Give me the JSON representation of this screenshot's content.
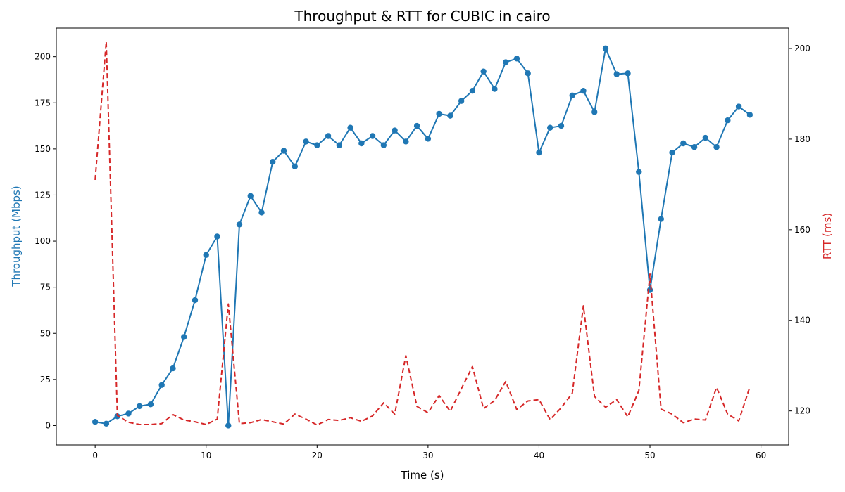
{
  "chart_data": {
    "type": "line",
    "title": "Throughput & RTT for CUBIC in cairo",
    "xlabel": "Time (s)",
    "ylabel_left": "Throughput (Mbps)",
    "ylabel_right": "RTT (ms)",
    "xlim": [
      -3.5,
      62.5
    ],
    "ylim_left": [
      -10.5,
      215.5
    ],
    "ylim_right": [
      112.5,
      204.5
    ],
    "x_ticks": [
      0,
      10,
      20,
      30,
      40,
      50,
      60
    ],
    "y_ticks_left": [
      0,
      25,
      50,
      75,
      100,
      125,
      150,
      175,
      200
    ],
    "y_ticks_right": [
      120,
      140,
      160,
      180,
      200
    ],
    "grid": false,
    "colors": {
      "throughput": "#1f77b4",
      "rtt": "#d62728"
    },
    "x": [
      0,
      1,
      2,
      3,
      4,
      5,
      6,
      7,
      8,
      9,
      10,
      11,
      12,
      13,
      14,
      15,
      16,
      17,
      18,
      19,
      20,
      21,
      22,
      23,
      24,
      25,
      26,
      27,
      28,
      29,
      30,
      31,
      32,
      33,
      34,
      35,
      36,
      37,
      38,
      39,
      40,
      41,
      42,
      43,
      44,
      45,
      46,
      47,
      48,
      49,
      50,
      51,
      52,
      53,
      54,
      55,
      56,
      57,
      58,
      59
    ],
    "series": [
      {
        "key": "throughput",
        "axis": "left",
        "style": "solid-marker",
        "values": [
          2,
          1,
          5,
          6.5,
          10.5,
          11.5,
          22,
          31,
          48,
          68,
          92.5,
          102.5,
          0,
          109,
          124.5,
          115.5,
          143,
          149,
          140.5,
          154,
          152,
          157,
          152,
          161.5,
          153,
          157,
          152,
          160,
          154,
          162.5,
          155.5,
          169,
          168,
          176,
          181.5,
          192,
          182.5,
          197,
          199,
          191,
          148,
          161.5,
          162.5,
          179,
          181.5,
          170,
          204.5,
          190.5,
          191,
          137.5,
          73.5,
          112,
          148,
          153,
          151,
          156,
          151,
          165.5,
          173,
          168.5
        ]
      },
      {
        "key": "rtt",
        "axis": "right",
        "style": "dashed",
        "values": [
          171,
          201.5,
          119,
          117.5,
          117,
          117,
          117.2,
          119.2,
          118,
          117.6,
          117,
          118.2,
          143.6,
          117.2,
          117.4,
          118.1,
          117.6,
          117.1,
          119.3,
          118.2,
          116.9,
          118.1,
          117.9,
          118.5,
          117.7,
          118.9,
          121.8,
          119.3,
          132.2,
          121,
          119.6,
          123.4,
          119.9,
          124.9,
          129.8,
          120.5,
          122.3,
          126.5,
          120.3,
          122.2,
          122.5,
          118.1,
          120.7,
          123.9,
          143.2,
          123.2,
          120.8,
          122.5,
          118.7,
          124.5,
          150.2,
          120.4,
          119.3,
          117.4,
          118.2,
          118,
          125.2,
          119.3,
          117.8,
          125.3
        ]
      }
    ]
  }
}
